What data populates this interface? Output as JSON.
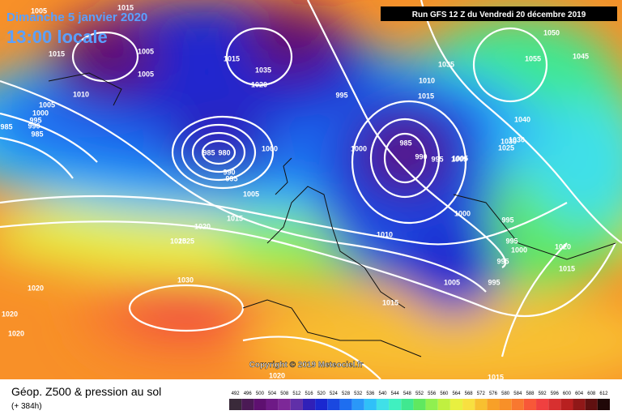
{
  "header": {
    "date": "Dimanche 5 janvier 2020",
    "time": "13:00 locale",
    "run": "Run GFS 12 Z du Vendredi 20 décembre 2019"
  },
  "copyright": "Copyright © 2019 Meteociel.fr",
  "footer": {
    "title": "Géop. Z500 & pression au sol",
    "lead": "(+ 384h)"
  },
  "colorbar": {
    "labels": [
      "492",
      "496",
      "500",
      "504",
      "508",
      "512",
      "516",
      "520",
      "524",
      "528",
      "532",
      "536",
      "540",
      "544",
      "548",
      "552",
      "556",
      "560",
      "564",
      "568",
      "572",
      "576",
      "580",
      "584",
      "588",
      "592",
      "596",
      "600",
      "604",
      "608",
      "612"
    ],
    "colors": [
      "#3a2a3a",
      "#4b1a55",
      "#5e1070",
      "#6e1a86",
      "#7d2898",
      "#6030a8",
      "#3020b8",
      "#1a28d0",
      "#1a48e0",
      "#1e6ef0",
      "#2a98f8",
      "#30c0f8",
      "#40e0e8",
      "#40f0c0",
      "#40e890",
      "#60e860",
      "#90f050",
      "#c0f040",
      "#e8f040",
      "#f8e040",
      "#f8c030",
      "#f8a028",
      "#f89028",
      "#f87830",
      "#f85838",
      "#f04040",
      "#d83030",
      "#b82020",
      "#901818",
      "#601010",
      "#200808"
    ]
  },
  "isobar_labels": [
    "1005",
    "1015",
    "1005",
    "1010",
    "1005",
    "1000",
    "995",
    "990",
    "985",
    "985",
    "1015",
    "1005",
    "1015",
    "1035",
    "1020",
    "1025",
    "985",
    "980",
    "990",
    "995",
    "1000",
    "1005",
    "1015",
    "1020",
    "1025",
    "1030",
    "1020",
    "1020",
    "1020",
    "995",
    "1035",
    "1030",
    "1010",
    "1015",
    "1000",
    "1005",
    "985",
    "990",
    "995",
    "1005",
    "1000",
    "1050",
    "1055",
    "1045",
    "1040",
    "1025",
    "1030",
    "995",
    "995",
    "995",
    "1000",
    "1020",
    "1015",
    "1005",
    "995",
    "1015",
    "1010",
    "1020",
    "1015"
  ]
}
